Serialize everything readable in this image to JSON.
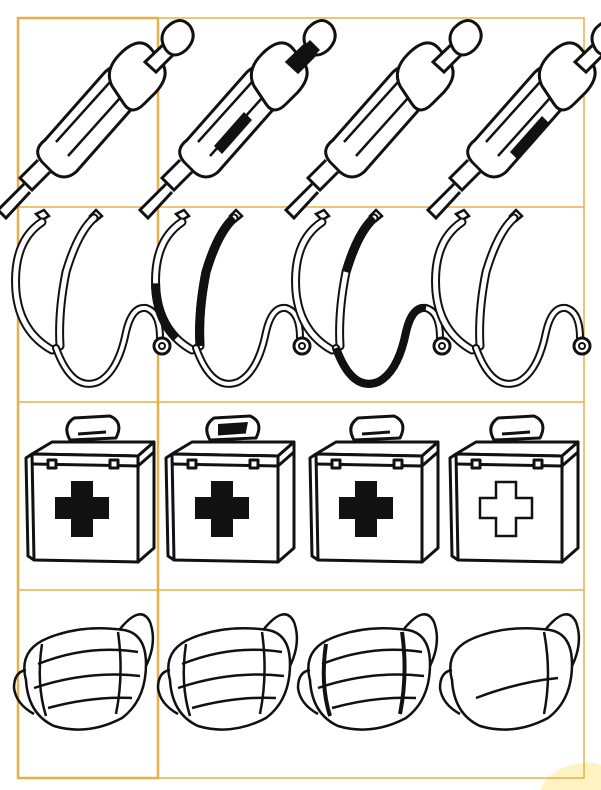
{
  "worksheet": {
    "grid_color": "#E8B04A",
    "line_color": "#111111",
    "corner_color": "#FFF3C4",
    "rows": [
      {
        "item": "syringe-icon",
        "cells": [
          "reference",
          "plunger-shaded",
          "plain",
          "barrel-shaded"
        ]
      },
      {
        "item": "stethoscope-icon",
        "cells": [
          "reference",
          "tube-shaded",
          "earpiece-tube-shaded",
          "plain"
        ]
      },
      {
        "item": "first-aid-kit-icon",
        "cells": [
          "reference",
          "handle-shaded",
          "plain",
          "cross-hollow"
        ]
      },
      {
        "item": "face-mask-icon",
        "cells": [
          "reference",
          "plain",
          "pleats-shaded",
          "single-pleat"
        ]
      }
    ]
  }
}
